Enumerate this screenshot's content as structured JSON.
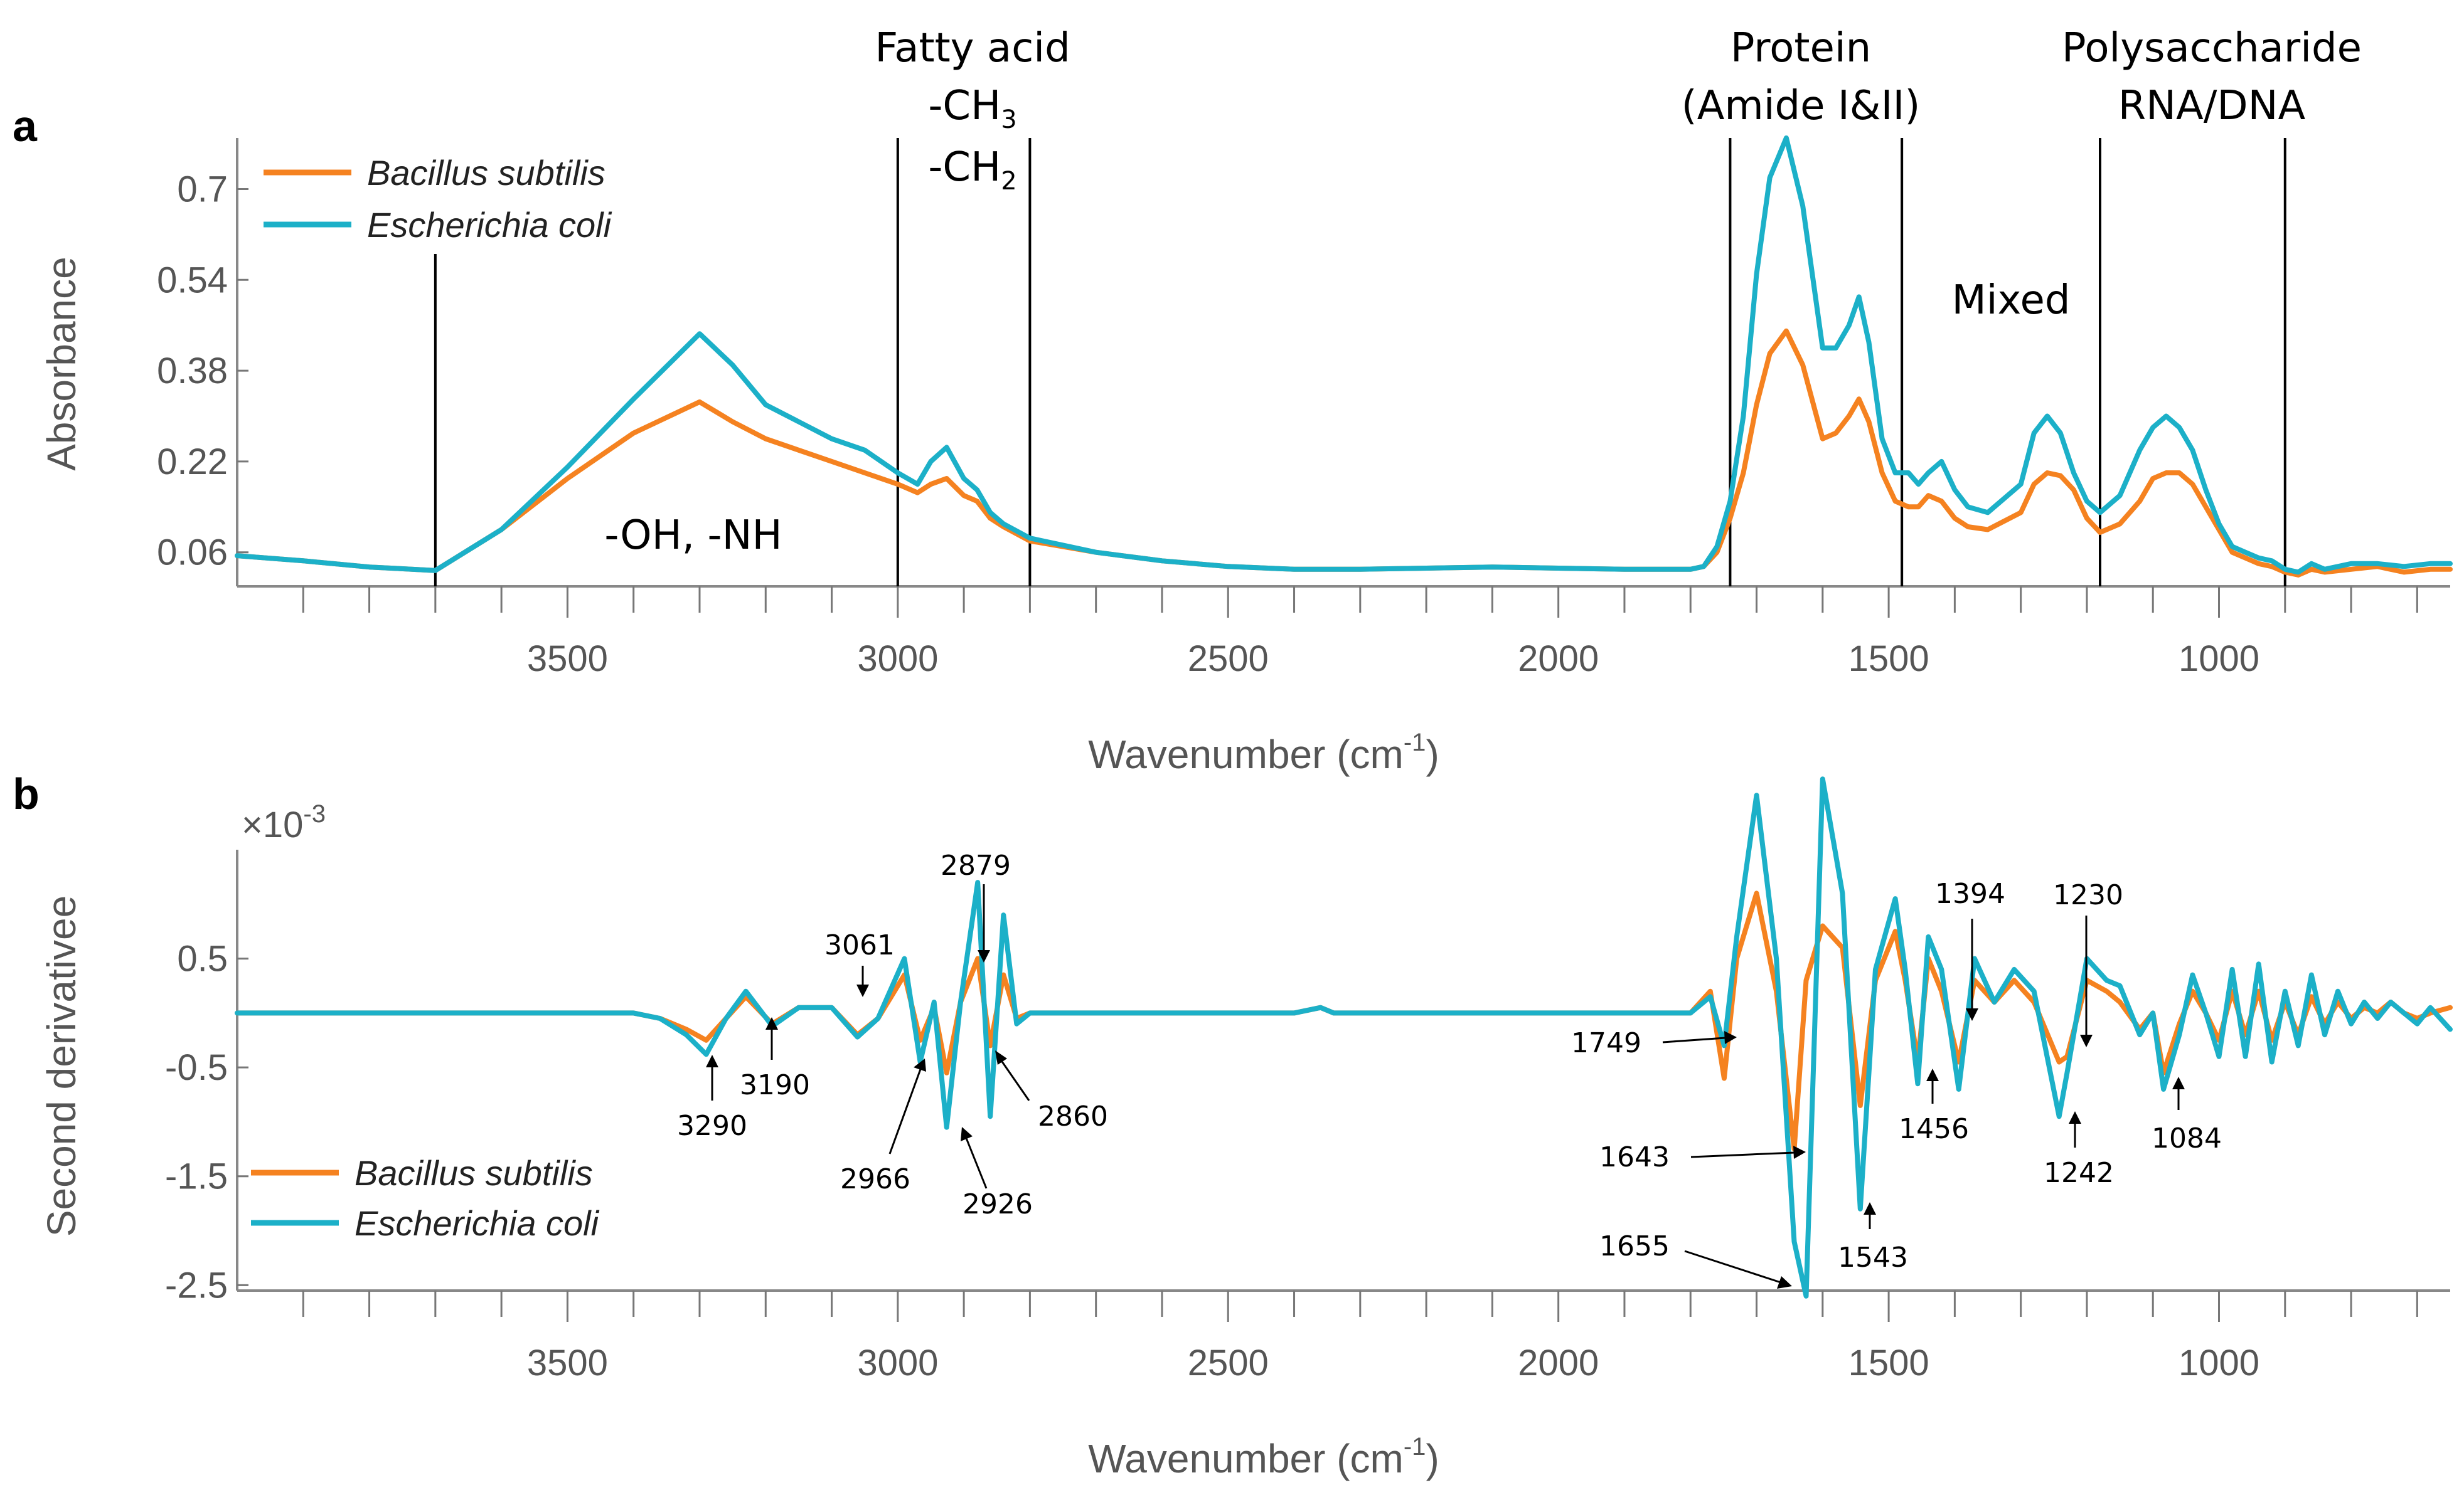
{
  "chart_data": [
    {
      "id": "a",
      "type": "line",
      "panel_label": "a",
      "xlabel_main": "Wavenumber (cm",
      "xlabel_sup": "-1",
      "xlabel_end": ")",
      "ylabel": "Absorbance",
      "xlim": [
        4000,
        650
      ],
      "ylim": [
        0,
        0.79
      ],
      "xticks": [
        3500,
        3000,
        2500,
        2000,
        1500,
        1000
      ],
      "yticks": [
        0.06,
        0.22,
        0.38,
        0.54,
        0.7
      ],
      "ytick_labels": [
        "0.06",
        "0.22",
        "0.38",
        "0.54",
        "0.7"
      ],
      "legend": [
        "Bacillus subtilis",
        "Escherichia coli"
      ],
      "series": [
        {
          "name": "Bacillus subtilis",
          "color": "#F58220",
          "x": [
            4000,
            3900,
            3800,
            3700,
            3600,
            3500,
            3400,
            3300,
            3250,
            3200,
            3150,
            3100,
            3050,
            3000,
            2970,
            2950,
            2926,
            2900,
            2880,
            2860,
            2840,
            2800,
            2700,
            2600,
            2500,
            2400,
            2300,
            2200,
            2100,
            2000,
            1900,
            1800,
            1780,
            1760,
            1740,
            1720,
            1700,
            1680,
            1655,
            1630,
            1600,
            1580,
            1560,
            1545,
            1530,
            1510,
            1490,
            1470,
            1455,
            1440,
            1420,
            1400,
            1380,
            1350,
            1300,
            1280,
            1260,
            1240,
            1220,
            1200,
            1180,
            1150,
            1120,
            1100,
            1080,
            1060,
            1040,
            1020,
            1000,
            980,
            960,
            940,
            920,
            900,
            880,
            860,
            840,
            800,
            760,
            720,
            680,
            650
          ],
          "values": [
            0.054,
            0.045,
            0.034,
            0.028,
            0.1,
            0.19,
            0.27,
            0.325,
            0.29,
            0.26,
            0.24,
            0.22,
            0.2,
            0.18,
            0.165,
            0.18,
            0.19,
            0.16,
            0.15,
            0.12,
            0.105,
            0.08,
            0.06,
            0.045,
            0.035,
            0.03,
            0.03,
            0.032,
            0.034,
            0.032,
            0.03,
            0.03,
            0.035,
            0.06,
            0.12,
            0.2,
            0.32,
            0.41,
            0.45,
            0.39,
            0.26,
            0.27,
            0.3,
            0.33,
            0.29,
            0.2,
            0.15,
            0.14,
            0.14,
            0.16,
            0.15,
            0.12,
            0.105,
            0.1,
            0.13,
            0.18,
            0.2,
            0.195,
            0.17,
            0.12,
            0.095,
            0.11,
            0.15,
            0.19,
            0.2,
            0.2,
            0.18,
            0.14,
            0.1,
            0.06,
            0.05,
            0.04,
            0.035,
            0.025,
            0.02,
            0.03,
            0.025,
            0.03,
            0.035,
            0.025,
            0.03,
            0.03
          ]
        },
        {
          "name": "Escherichia coli",
          "color": "#1CB0C8",
          "x": [
            4000,
            3900,
            3800,
            3700,
            3600,
            3500,
            3400,
            3300,
            3250,
            3200,
            3150,
            3100,
            3050,
            3000,
            2970,
            2950,
            2926,
            2900,
            2880,
            2860,
            2840,
            2800,
            2700,
            2600,
            2500,
            2400,
            2300,
            2200,
            2100,
            2000,
            1900,
            1800,
            1780,
            1760,
            1740,
            1720,
            1700,
            1680,
            1655,
            1630,
            1600,
            1580,
            1560,
            1545,
            1530,
            1510,
            1490,
            1470,
            1455,
            1440,
            1420,
            1400,
            1380,
            1350,
            1300,
            1280,
            1260,
            1240,
            1220,
            1200,
            1180,
            1150,
            1120,
            1100,
            1080,
            1060,
            1040,
            1020,
            1000,
            980,
            960,
            940,
            920,
            900,
            880,
            860,
            840,
            800,
            760,
            720,
            680,
            650
          ],
          "values": [
            0.054,
            0.045,
            0.034,
            0.028,
            0.1,
            0.21,
            0.33,
            0.445,
            0.39,
            0.32,
            0.29,
            0.26,
            0.24,
            0.2,
            0.18,
            0.22,
            0.245,
            0.19,
            0.17,
            0.13,
            0.11,
            0.085,
            0.06,
            0.045,
            0.035,
            0.03,
            0.03,
            0.032,
            0.034,
            0.032,
            0.03,
            0.03,
            0.035,
            0.07,
            0.15,
            0.3,
            0.55,
            0.72,
            0.79,
            0.67,
            0.42,
            0.42,
            0.46,
            0.51,
            0.43,
            0.26,
            0.2,
            0.2,
            0.18,
            0.2,
            0.22,
            0.17,
            0.14,
            0.13,
            0.18,
            0.27,
            0.3,
            0.27,
            0.2,
            0.15,
            0.13,
            0.16,
            0.24,
            0.28,
            0.3,
            0.28,
            0.24,
            0.17,
            0.11,
            0.07,
            0.06,
            0.05,
            0.045,
            0.03,
            0.025,
            0.04,
            0.03,
            0.04,
            0.04,
            0.035,
            0.04,
            0.04
          ]
        }
      ],
      "annotations": {
        "fatty_acid": "Fatty acid",
        "ch3_base": "-CH",
        "ch3_sub": "3",
        "ch2_base": "-CH",
        "ch2_sub": "2",
        "protein_1": "Protein",
        "protein_2": "(Amide I&II)",
        "poly_1": "Polysaccharide",
        "poly_2": "RNA/DNA",
        "mixed": "Mixed",
        "ohnh": "-OH, -NH"
      },
      "region_boundaries": [
        3700,
        3000,
        2800,
        1740,
        1480,
        1180,
        900
      ]
    },
    {
      "id": "b",
      "type": "line",
      "panel_label": "b",
      "xlabel_main": "Wavenumber (cm",
      "xlabel_sup": "-1",
      "xlabel_end": ")",
      "ylabel": "Second derivativee",
      "exponent_base": "×10",
      "exponent_sup": "-3",
      "xlim": [
        4000,
        650
      ],
      "ylim": [
        -2.55,
        1.5
      ],
      "xticks": [
        3500,
        3000,
        2500,
        2000,
        1500,
        1000
      ],
      "yticks": [
        -2.5,
        -1.5,
        -0.5,
        0.5
      ],
      "ytick_labels": [
        "-2.5",
        "-1.5",
        "-0.5",
        "0.5"
      ],
      "legend": [
        "Bacillus subtilis",
        "Escherichia coli"
      ],
      "series": [
        {
          "name": "Bacillus subtilis",
          "color": "#F58220",
          "x": [
            4000,
            3700,
            3400,
            3360,
            3320,
            3290,
            3260,
            3230,
            3190,
            3150,
            3100,
            3061,
            3030,
            2990,
            2966,
            2945,
            2926,
            2905,
            2879,
            2860,
            2840,
            2820,
            2800,
            2400,
            2360,
            2340,
            1800,
            1770,
            1749,
            1730,
            1700,
            1670,
            1643,
            1625,
            1600,
            1570,
            1543,
            1520,
            1490,
            1475,
            1456,
            1440,
            1420,
            1394,
            1370,
            1340,
            1310,
            1280,
            1242,
            1230,
            1200,
            1170,
            1150,
            1120,
            1100,
            1084,
            1060,
            1040,
            1020,
            1000,
            980,
            960,
            940,
            920,
            900,
            880,
            860,
            840,
            820,
            800,
            780,
            760,
            740,
            720,
            700,
            680,
            650
          ],
          "values": [
            0,
            0,
            0,
            -0.05,
            -0.15,
            -0.25,
            -0.05,
            0.15,
            -0.1,
            0.05,
            0.05,
            -0.2,
            -0.05,
            0.35,
            -0.25,
            0.05,
            -0.55,
            0.1,
            0.5,
            -0.3,
            0.35,
            -0.05,
            0,
            0,
            0.05,
            0,
            0,
            0.2,
            -0.6,
            0.5,
            1.1,
            0.2,
            -1.25,
            0.3,
            0.8,
            0.6,
            -0.85,
            0.3,
            0.75,
            0.3,
            -0.45,
            0.5,
            0.2,
            -0.45,
            0.3,
            0.1,
            0.3,
            0.1,
            -0.45,
            -0.4,
            0.3,
            0.2,
            0.1,
            -0.15,
            0,
            -0.55,
            -0.1,
            0.2,
            0,
            -0.25,
            0.2,
            -0.2,
            0.2,
            -0.25,
            0.1,
            -0.2,
            0.15,
            -0.1,
            0.1,
            -0.05,
            0.05,
            0,
            0.1,
            0,
            -0.05,
            0,
            0.05
          ]
        },
        {
          "name": "Escherichia coli",
          "color": "#1CB0C8",
          "x": [
            4000,
            3700,
            3400,
            3360,
            3320,
            3290,
            3260,
            3230,
            3190,
            3150,
            3100,
            3061,
            3030,
            2990,
            2966,
            2945,
            2926,
            2905,
            2879,
            2860,
            2840,
            2820,
            2800,
            2400,
            2360,
            2340,
            1800,
            1770,
            1749,
            1730,
            1700,
            1670,
            1643,
            1625,
            1600,
            1570,
            1543,
            1520,
            1490,
            1475,
            1456,
            1440,
            1420,
            1394,
            1370,
            1340,
            1310,
            1280,
            1242,
            1230,
            1200,
            1170,
            1150,
            1120,
            1100,
            1084,
            1060,
            1040,
            1020,
            1000,
            980,
            960,
            940,
            920,
            900,
            880,
            860,
            840,
            820,
            800,
            780,
            760,
            740,
            720,
            700,
            680,
            650
          ],
          "values": [
            0,
            0,
            0,
            -0.05,
            -0.2,
            -0.38,
            -0.05,
            0.2,
            -0.12,
            0.05,
            0.05,
            -0.22,
            -0.05,
            0.5,
            -0.45,
            0.1,
            -1.05,
            0.1,
            1.2,
            -0.95,
            0.9,
            -0.1,
            0,
            0,
            0.05,
            0,
            0,
            0.15,
            -0.3,
            0.7,
            2.0,
            0.5,
            -2.1,
            -2.6,
            2.15,
            1.1,
            -1.8,
            0.4,
            1.05,
            0.4,
            -0.65,
            0.7,
            0.4,
            -0.7,
            0.5,
            0.1,
            0.4,
            0.2,
            -0.95,
            -0.55,
            0.5,
            0.3,
            0.25,
            -0.2,
            0,
            -0.7,
            -0.2,
            0.35,
            0,
            -0.4,
            0.4,
            -0.4,
            0.45,
            -0.45,
            0.2,
            -0.3,
            0.35,
            -0.2,
            0.2,
            -0.1,
            0.1,
            -0.05,
            0.1,
            0,
            -0.1,
            0.05,
            -0.15
          ]
        }
      ],
      "peak_labels": [
        "3290",
        "3190",
        "3061",
        "2966",
        "2926",
        "2879",
        "2860",
        "1749",
        "1643",
        "1655",
        "1543",
        "1456",
        "1394",
        "1242",
        "1230",
        "1084"
      ]
    }
  ]
}
